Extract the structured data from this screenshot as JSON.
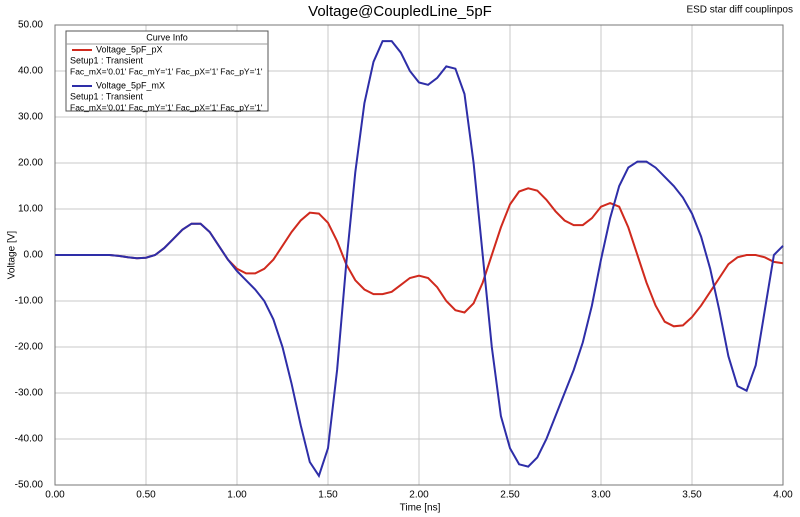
{
  "chart_data": {
    "type": "line",
    "title": "Voltage@CoupledLine_5pF",
    "subtitle": "ESD star diff couplinpos",
    "x_label": "Time [ns]",
    "y_label": "Voltage [V]",
    "legend_title": "Curve Info",
    "grid": true,
    "legend": "top-left",
    "xlim": [
      0,
      4
    ],
    "ylim": [
      -50,
      50
    ],
    "xticks": [
      {
        "value": 0,
        "label": "0.00"
      },
      {
        "value": 0.5,
        "label": "0.50"
      },
      {
        "value": 1,
        "label": "1.00"
      },
      {
        "value": 1.5,
        "label": "1.50"
      },
      {
        "value": 2,
        "label": "2.00"
      },
      {
        "value": 2.5,
        "label": "2.50"
      },
      {
        "value": 3,
        "label": "3.00"
      },
      {
        "value": 3.5,
        "label": "3.50"
      },
      {
        "value": 4,
        "label": "4.00"
      }
    ],
    "yticks": [
      {
        "value": -50,
        "label": "-50.00"
      },
      {
        "value": -40,
        "label": "-40.00"
      },
      {
        "value": -30,
        "label": "-30.00"
      },
      {
        "value": -20,
        "label": "-20.00"
      },
      {
        "value": -10,
        "label": "-10.00"
      },
      {
        "value": 0,
        "label": "0.00"
      },
      {
        "value": 10,
        "label": "10.00"
      },
      {
        "value": 20,
        "label": "20.00"
      },
      {
        "value": 30,
        "label": "30.00"
      },
      {
        "value": 40,
        "label": "40.00"
      },
      {
        "value": 50,
        "label": "50.00"
      }
    ],
    "x": [
      0,
      0.05,
      0.1,
      0.15,
      0.2,
      0.25,
      0.3,
      0.35,
      0.4,
      0.45,
      0.5,
      0.55,
      0.6,
      0.65,
      0.7,
      0.75,
      0.8,
      0.85,
      0.9,
      0.95,
      1,
      1.05,
      1.1,
      1.15,
      1.2,
      1.25,
      1.3,
      1.35,
      1.4,
      1.45,
      1.5,
      1.55,
      1.6,
      1.65,
      1.7,
      1.75,
      1.8,
      1.85,
      1.9,
      1.95,
      2,
      2.05,
      2.1,
      2.15,
      2.2,
      2.25,
      2.3,
      2.35,
      2.4,
      2.45,
      2.5,
      2.55,
      2.6,
      2.65,
      2.7,
      2.75,
      2.8,
      2.85,
      2.9,
      2.95,
      3,
      3.05,
      3.1,
      3.15,
      3.2,
      3.25,
      3.3,
      3.35,
      3.4,
      3.45,
      3.5,
      3.55,
      3.6,
      3.65,
      3.7,
      3.75,
      3.8,
      3.85,
      3.9,
      3.95,
      4
    ],
    "series": [
      {
        "name": "Voltage_5pF_pX",
        "color": "#d02a1e",
        "setup": "Setup1 : Transient",
        "factors": "Fac_mX='0.01' Fac_mY='1' Fac_pX='1' Fac_pY='1'",
        "values": [
          0,
          0,
          0,
          0,
          0,
          0,
          0,
          -0.2,
          -0.5,
          -0.7,
          -0.6,
          0,
          1.5,
          3.5,
          5.5,
          6.8,
          6.8,
          5,
          2,
          -1,
          -3,
          -4,
          -4,
          -3,
          -1,
          2,
          5,
          7.5,
          9.2,
          9,
          7,
          3,
          -2,
          -5.5,
          -7.5,
          -8.5,
          -8.5,
          -8,
          -6.5,
          -5,
          -4.5,
          -5,
          -7,
          -10,
          -12,
          -12.5,
          -10.5,
          -6,
          0,
          6,
          11,
          13.8,
          14.5,
          14,
          12,
          9.5,
          7.5,
          6.5,
          6.5,
          8,
          10.5,
          11.3,
          10.5,
          6,
          0,
          -6,
          -11,
          -14.5,
          -15.5,
          -15.3,
          -13.5,
          -11,
          -8,
          -5,
          -2,
          -0.5,
          0,
          0,
          -0.5,
          -1.5,
          -1.8
        ]
      },
      {
        "name": "Voltage_5pF_mX",
        "color": "#2e2ea8",
        "setup": "Setup1 : Transient",
        "factors": "Fac_mX='0.01' Fac_mY='1' Fac_pX='1' Fac_pY='1'",
        "values": [
          0,
          0,
          0,
          0,
          0,
          0,
          0,
          -0.2,
          -0.5,
          -0.7,
          -0.6,
          0,
          1.5,
          3.5,
          5.5,
          6.8,
          6.8,
          5,
          2,
          -1,
          -3.5,
          -5.5,
          -7.5,
          -10,
          -14,
          -20,
          -28,
          -37,
          -45,
          -48,
          -42,
          -25,
          -2,
          18,
          33,
          42,
          46.5,
          46.5,
          44,
          40,
          37.5,
          37,
          38.5,
          41,
          40.5,
          35,
          20,
          0,
          -20,
          -35,
          -42,
          -45.5,
          -46,
          -44,
          -40,
          -35,
          -30,
          -25,
          -19,
          -11,
          -1,
          8,
          15,
          19,
          20.3,
          20.3,
          19,
          17,
          15,
          12.5,
          9,
          4,
          -3,
          -12,
          -22,
          -28.5,
          -29.5,
          -24,
          -12,
          0,
          2
        ]
      }
    ]
  }
}
